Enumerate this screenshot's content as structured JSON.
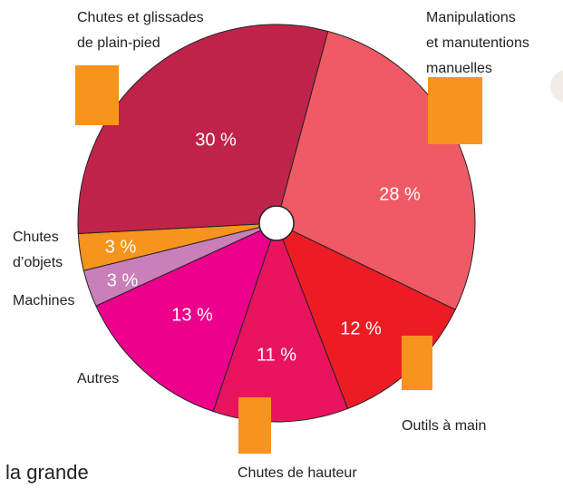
{
  "chart_data": {
    "type": "pie",
    "categories": [
      "Manipulations\net manutentions\nmanuelles",
      "Outils à main",
      "Chutes de hauteur",
      "Autres",
      "Machines",
      "Chutes\nd’objets",
      "Chutes et glissades\nde plain-pied"
    ],
    "values": [
      28,
      12,
      11,
      13,
      3,
      3,
      30
    ],
    "value_labels": [
      "28 %",
      "12 %",
      "11 %",
      "13 %",
      "3 %",
      "3 %",
      "30 %"
    ],
    "colors": [
      "#f05a65",
      "#ed1c24",
      "#e8155e",
      "#ec008c",
      "#c97fb8",
      "#f7941d",
      "#c0234a"
    ]
  },
  "fragment_text": "la grande"
}
